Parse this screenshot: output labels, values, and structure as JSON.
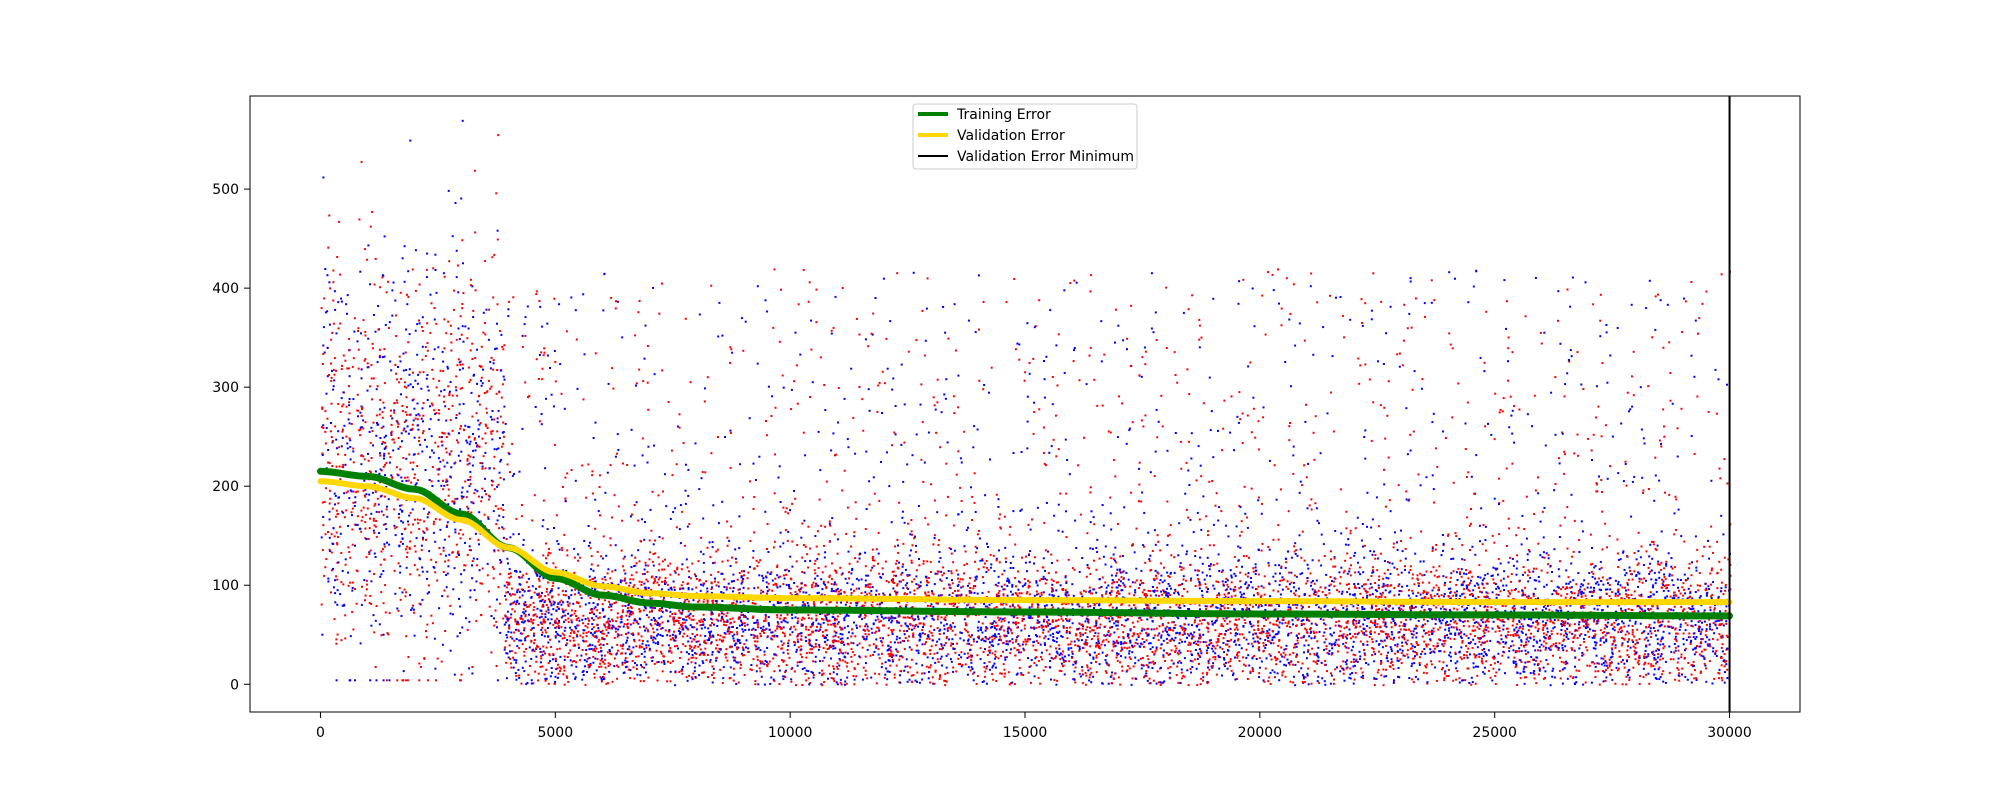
{
  "chart_data": {
    "type": "scatter",
    "title": "",
    "xlabel": "",
    "ylabel": "",
    "xlim": [
      -1500,
      31500
    ],
    "ylim": [
      -28,
      594
    ],
    "xticks": [
      0,
      5000,
      10000,
      15000,
      20000,
      25000,
      30000
    ],
    "xtick_labels": [
      "0",
      "5000",
      "10000",
      "15000",
      "20000",
      "25000",
      "30000"
    ],
    "yticks": [
      0,
      100,
      200,
      300,
      400,
      500
    ],
    "ytick_labels": [
      "0",
      "100",
      "200",
      "300",
      "400",
      "500"
    ],
    "grid": false,
    "legend_position": "top-center",
    "colors": {
      "training_scatter": "#0000ff",
      "validation_scatter": "#ff0000",
      "training_error": "#008000",
      "validation_error": "#ffd700",
      "validation_minimum": "#000000"
    },
    "scatter_description": {
      "x_range": [
        0,
        30000
      ],
      "phase_1": {
        "x_range": [
          0,
          3900
        ],
        "y_range": [
          5,
          570
        ]
      },
      "phase_2": {
        "x_range": [
          3900,
          30000
        ],
        "y_range": [
          0,
          450
        ]
      }
    },
    "series": [
      {
        "name": "Training Error",
        "type": "line",
        "x": [
          0,
          1000,
          2000,
          3000,
          4000,
          5000,
          6000,
          7000,
          8000,
          10000,
          15000,
          20000,
          25000,
          30000
        ],
        "y": [
          215,
          210,
          197,
          172,
          138,
          107,
          90,
          82,
          78,
          75,
          73,
          71,
          70,
          69
        ]
      },
      {
        "name": "Validation Error",
        "type": "line",
        "x": [
          0,
          1000,
          2000,
          3000,
          4000,
          5000,
          6000,
          7000,
          8000,
          10000,
          15000,
          20000,
          25000,
          30000
        ],
        "y": [
          205,
          200,
          188,
          166,
          138,
          113,
          99,
          92,
          89,
          87,
          85,
          84,
          83,
          83
        ]
      },
      {
        "name": "Validation Error Minimum",
        "type": "vline",
        "x": 30000
      }
    ]
  }
}
